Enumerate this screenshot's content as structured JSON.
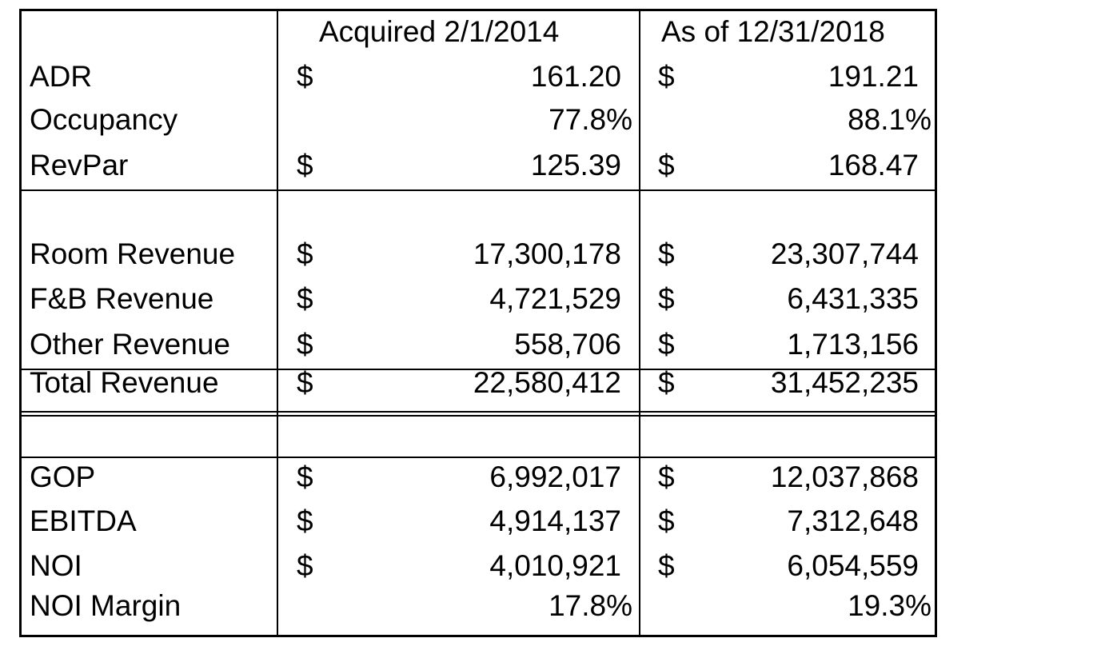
{
  "columns": [
    "Acquired 2/1/2014",
    "As of 12/31/2018"
  ],
  "currency_symbol": "$",
  "rows": [
    {
      "label": "ADR",
      "v1": "161.20",
      "v2": "191.21",
      "dollar": true,
      "pct": false
    },
    {
      "label": "Occupancy",
      "v1": "77.8%",
      "v2": "88.1%",
      "dollar": false,
      "pct": true
    },
    {
      "label": "RevPar",
      "v1": "125.39",
      "v2": "168.47",
      "dollar": true,
      "pct": false
    },
    {
      "label": "Room Revenue",
      "v1": "17,300,178",
      "v2": "23,307,744",
      "dollar": true,
      "pct": false
    },
    {
      "label": "F&B Revenue",
      "v1": "4,721,529",
      "v2": "6,431,335",
      "dollar": true,
      "pct": false
    },
    {
      "label": "Other Revenue",
      "v1": "558,706",
      "v2": "1,713,156",
      "dollar": true,
      "pct": false
    },
    {
      "label": "Total Revenue",
      "v1": "22,580,412",
      "v2": "31,452,235",
      "dollar": true,
      "pct": false
    },
    {
      "label": "GOP",
      "v1": "6,992,017",
      "v2": "12,037,868",
      "dollar": true,
      "pct": false
    },
    {
      "label": "EBITDA",
      "v1": "4,914,137",
      "v2": "7,312,648",
      "dollar": true,
      "pct": false
    },
    {
      "label": "NOI",
      "v1": "4,010,921",
      "v2": "6,054,559",
      "dollar": true,
      "pct": false
    },
    {
      "label": "NOI Margin",
      "v1": "17.8%",
      "v2": "19.3%",
      "dollar": false,
      "pct": true
    }
  ]
}
